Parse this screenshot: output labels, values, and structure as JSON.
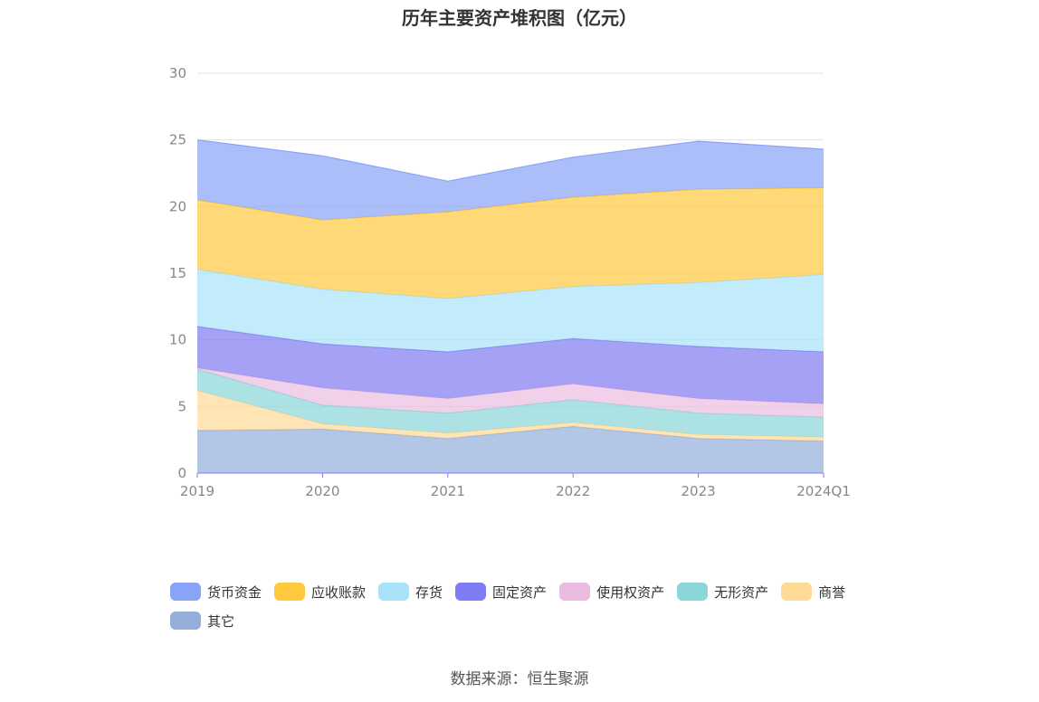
{
  "title": "历年主要资产堆积图（亿元）",
  "source": "数据来源：恒生聚源",
  "chart_data": {
    "type": "area",
    "stacked": true,
    "x": [
      "2019",
      "2020",
      "2021",
      "2022",
      "2023",
      "2024Q1"
    ],
    "ylim": [
      0,
      30
    ],
    "yticks": [
      "0",
      "5",
      "10",
      "15",
      "20",
      "25",
      "30"
    ],
    "grid": true,
    "legend_position": "bottom",
    "series": [
      {
        "name": "其它",
        "color": "#93aedb",
        "values": [
          3.2,
          3.3,
          2.6,
          3.5,
          2.6,
          2.4
        ]
      },
      {
        "name": "商誉",
        "color": "#ffd996",
        "values": [
          3.0,
          0.4,
          0.4,
          0.3,
          0.3,
          0.3
        ]
      },
      {
        "name": "无形资产",
        "color": "#8ad6d8",
        "values": [
          1.6,
          1.4,
          1.5,
          1.7,
          1.6,
          1.5
        ]
      },
      {
        "name": "使用权资产",
        "color": "#ebbcdf",
        "values": [
          0.1,
          1.3,
          1.1,
          1.2,
          1.1,
          1.0
        ]
      },
      {
        "name": "固定资产",
        "color": "#7f7bf2",
        "values": [
          3.1,
          3.3,
          3.5,
          3.4,
          3.9,
          3.9
        ]
      },
      {
        "name": "存货",
        "color": "#a8e2f9",
        "values": [
          4.3,
          4.1,
          4.0,
          3.9,
          4.8,
          5.8
        ]
      },
      {
        "name": "应收账款",
        "color": "#ffc83d",
        "values": [
          5.2,
          5.2,
          6.5,
          6.7,
          7.0,
          6.5
        ]
      },
      {
        "name": "货币资金",
        "color": "#89a3f8",
        "values": [
          4.5,
          4.8,
          2.3,
          3.0,
          3.6,
          2.9
        ]
      }
    ],
    "legend_order": [
      "货币资金",
      "应收账款",
      "存货",
      "固定资产",
      "使用权资产",
      "无形资产",
      "商誉",
      "其它"
    ]
  }
}
